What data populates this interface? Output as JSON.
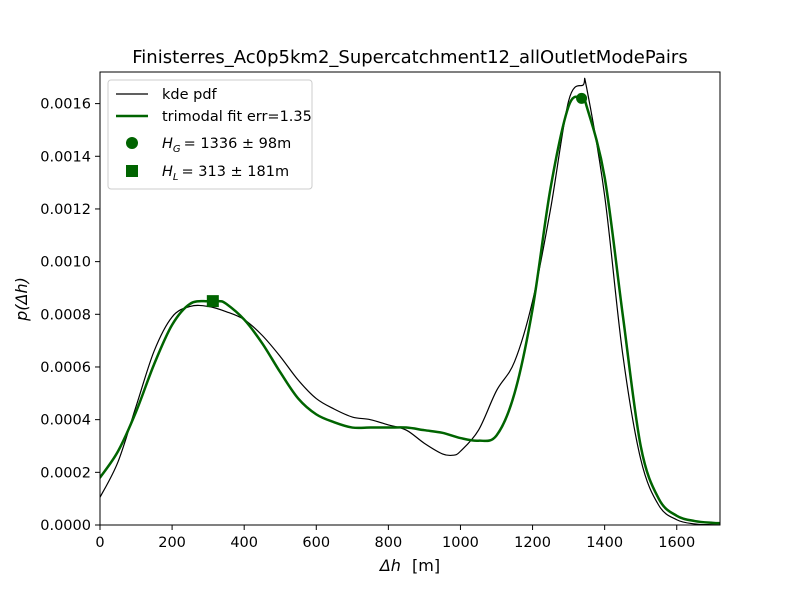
{
  "chart_data": {
    "type": "line",
    "title": "Finisterres_Ac0p5km2_Supercatchment12_allOutletModePairs",
    "xlabel_symbol": "Δh",
    "xlabel_unit": "[m]",
    "ylabel": "p(Δh)",
    "xlim": [
      0,
      1720
    ],
    "ylim": [
      0,
      0.00172
    ],
    "x_ticks": [
      0,
      200,
      400,
      600,
      800,
      1000,
      1200,
      1400,
      1600
    ],
    "y_ticks": [
      0.0,
      0.0002,
      0.0004,
      0.0006,
      0.0008,
      0.001,
      0.0012,
      0.0014,
      0.0016
    ],
    "y_tick_labels": [
      "0.0000",
      "0.0002",
      "0.0004",
      "0.0006",
      "0.0008",
      "0.0010",
      "0.0012",
      "0.0014",
      "0.0016"
    ],
    "grid": false,
    "legend_position": "top-left",
    "colors": {
      "kde": "#000000",
      "fit": "#006400"
    },
    "series": [
      {
        "name": "kde pdf",
        "x": [
          0,
          50,
          100,
          150,
          200,
          250,
          300,
          350,
          400,
          450,
          500,
          550,
          600,
          650,
          700,
          750,
          800,
          850,
          900,
          950,
          980,
          1000,
          1050,
          1100,
          1150,
          1200,
          1250,
          1300,
          1340,
          1350,
          1400,
          1450,
          1500,
          1550,
          1600,
          1650,
          1700,
          1720
        ],
        "y": [
          0.000105,
          0.00024,
          0.00045,
          0.00066,
          0.00079,
          0.00083,
          0.00083,
          0.00081,
          0.00078,
          0.00072,
          0.00064,
          0.00055,
          0.00048,
          0.00044,
          0.00041,
          0.0004,
          0.00038,
          0.00036,
          0.00031,
          0.00027,
          0.000265,
          0.00028,
          0.00036,
          0.00051,
          0.00062,
          0.00085,
          0.0012,
          0.00161,
          0.00167,
          0.00166,
          0.00125,
          0.00065,
          0.00025,
          7.5e-05,
          2e-05,
          4e-06,
          1e-06,
          0.0
        ]
      },
      {
        "name": "trimodal fit err=1.35",
        "x": [
          0,
          50,
          100,
          150,
          200,
          250,
          300,
          330,
          350,
          400,
          450,
          500,
          550,
          600,
          650,
          700,
          750,
          800,
          850,
          900,
          950,
          1000,
          1050,
          1100,
          1150,
          1200,
          1250,
          1300,
          1336,
          1350,
          1400,
          1450,
          1500,
          1550,
          1600,
          1650,
          1700,
          1720
        ],
        "y": [
          0.00018,
          0.00028,
          0.00043,
          0.00061,
          0.00076,
          0.00084,
          0.00085,
          0.00085,
          0.00084,
          0.00078,
          0.00069,
          0.00058,
          0.00048,
          0.00042,
          0.00039,
          0.00037,
          0.00037,
          0.00037,
          0.00037,
          0.00036,
          0.00035,
          0.00033,
          0.00032,
          0.00034,
          0.0005,
          0.00082,
          0.00128,
          0.00159,
          0.00162,
          0.00159,
          0.00132,
          0.0008,
          0.0003,
          0.0001,
          3.5e-05,
          1.5e-05,
          8e-06,
          7e-06
        ]
      }
    ],
    "markers": [
      {
        "shape": "circle",
        "x": 1336,
        "y": 0.00162
      },
      {
        "shape": "square",
        "x": 313,
        "y": 0.00085
      }
    ],
    "legend": [
      {
        "kind": "line",
        "series": "kde",
        "text": "kde pdf"
      },
      {
        "kind": "line",
        "series": "fit",
        "text": "trimodal fit err=1.35"
      },
      {
        "kind": "circle",
        "symbol": "H",
        "sub": "G",
        "text": "= 1336 ± 98m"
      },
      {
        "kind": "square",
        "symbol": "H",
        "sub": "L",
        "text": "= 313 ± 181m"
      }
    ]
  }
}
